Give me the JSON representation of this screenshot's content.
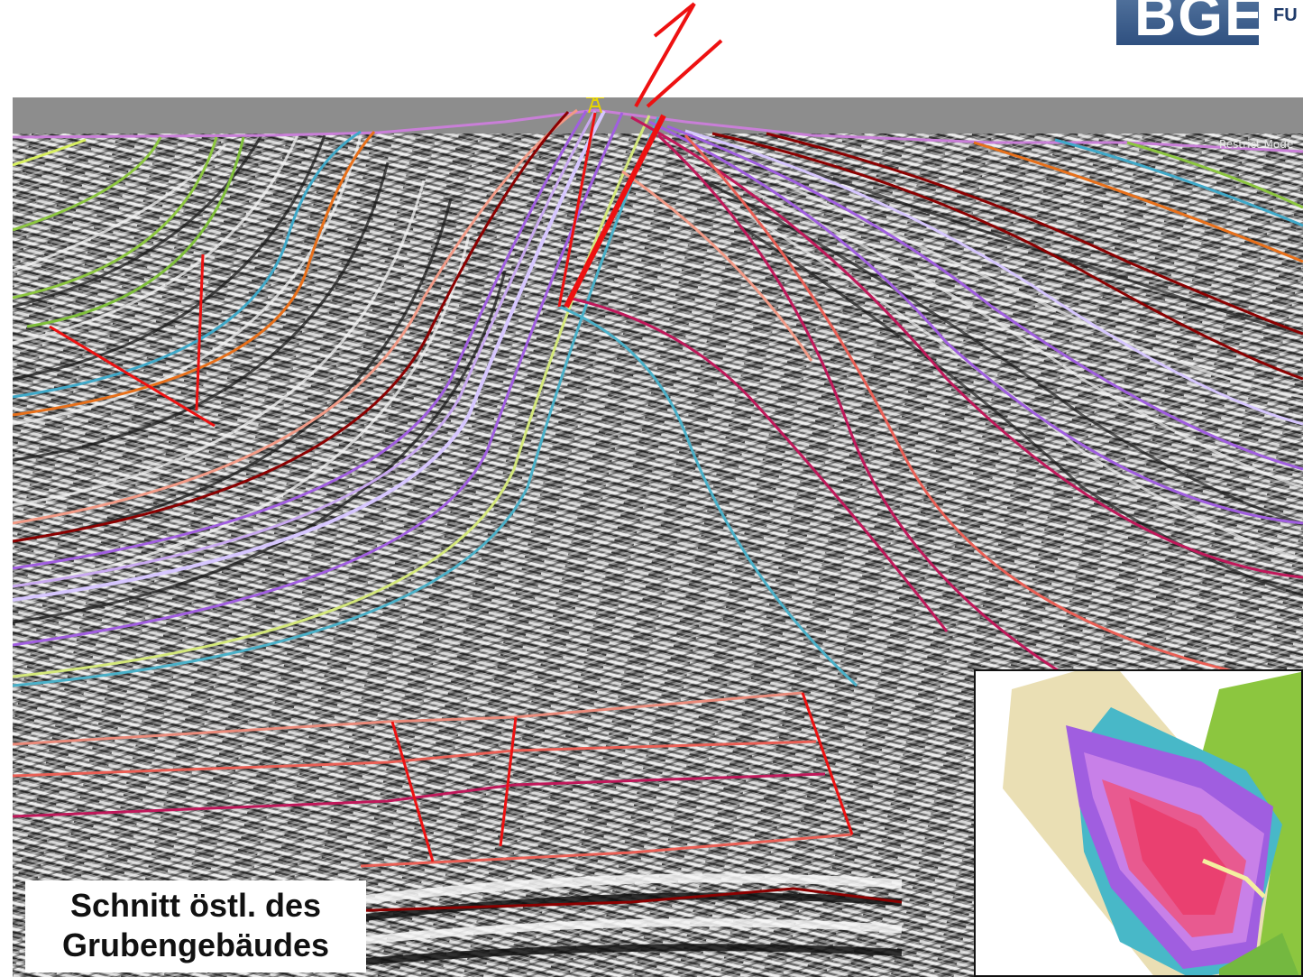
{
  "logo": {
    "text": "BGE",
    "sub": "FU"
  },
  "view": {
    "restrict_label": "Restrict Mode"
  },
  "caption": {
    "line1": "Schnitt östl. des",
    "line2": "Grubengebäudes"
  },
  "colors": {
    "background": "#ffffff",
    "panel_top": "#8a8a8a",
    "fault": "#ee1111",
    "logo": "#3c5d8c",
    "horizons": [
      "#d8f060",
      "#8cc63f",
      "#3fa9c9",
      "#e8701a",
      "#8b0000",
      "#f29a86",
      "#a05ee0",
      "#d6c6ff",
      "#d4e87a",
      "#4ab0c8",
      "#c0185a",
      "#ea5f55"
    ]
  },
  "icons": {
    "well": "drill-rig-icon",
    "arrows": "fault-offset-arrows-icon"
  }
}
